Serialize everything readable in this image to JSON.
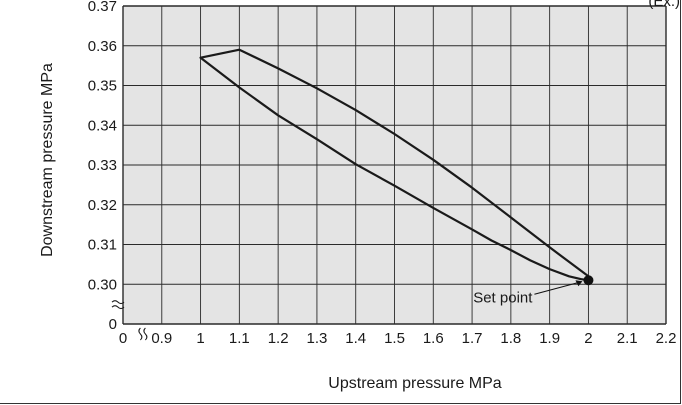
{
  "chart_data": {
    "type": "line",
    "corner_label": "(Ex.)",
    "xlabel": "Upstream pressure  MPa",
    "ylabel": "Downstream pressure  MPa",
    "x_ticks": [
      "0",
      "0.9",
      "1",
      "1.1",
      "1.2",
      "1.3",
      "1.4",
      "1.5",
      "1.6",
      "1.7",
      "1.8",
      "1.9",
      "2",
      "2.1",
      "2.2"
    ],
    "y_ticks": [
      "0",
      "0.30",
      "0.31",
      "0.32",
      "0.33",
      "0.34",
      "0.35",
      "0.36",
      "0.37"
    ],
    "xlim": [
      0.8,
      2.2
    ],
    "ylim": [
      0.29,
      0.37
    ],
    "grid": true,
    "axis_breaks": {
      "x": true,
      "y": true
    },
    "series": [
      {
        "x": [
          2.0,
          1.98,
          1.95,
          1.9,
          1.85,
          1.8,
          1.75,
          1.7,
          1.6,
          1.5,
          1.4,
          1.3,
          1.2,
          1.1,
          1.0
        ],
        "y": [
          0.301,
          0.3013,
          0.302,
          0.3038,
          0.306,
          0.3086,
          0.311,
          0.3138,
          0.3192,
          0.3248,
          0.3302,
          0.3365,
          0.3425,
          0.3495,
          0.357
        ]
      },
      {
        "x": [
          1.0,
          1.1,
          1.2,
          1.3,
          1.4,
          1.5,
          1.6,
          1.7,
          1.8,
          1.9,
          2.0
        ],
        "y": [
          0.357,
          0.359,
          0.3543,
          0.3493,
          0.3438,
          0.3378,
          0.3313,
          0.3243,
          0.3168,
          0.3093,
          0.302
        ]
      }
    ],
    "annotations": [
      {
        "text": "Set point",
        "x": 2.0,
        "y": 0.301
      }
    ],
    "colors": {
      "plot_bg": "#e4e4e4",
      "grid": "#2a2a2a",
      "curve": "#1a1a1a"
    }
  }
}
